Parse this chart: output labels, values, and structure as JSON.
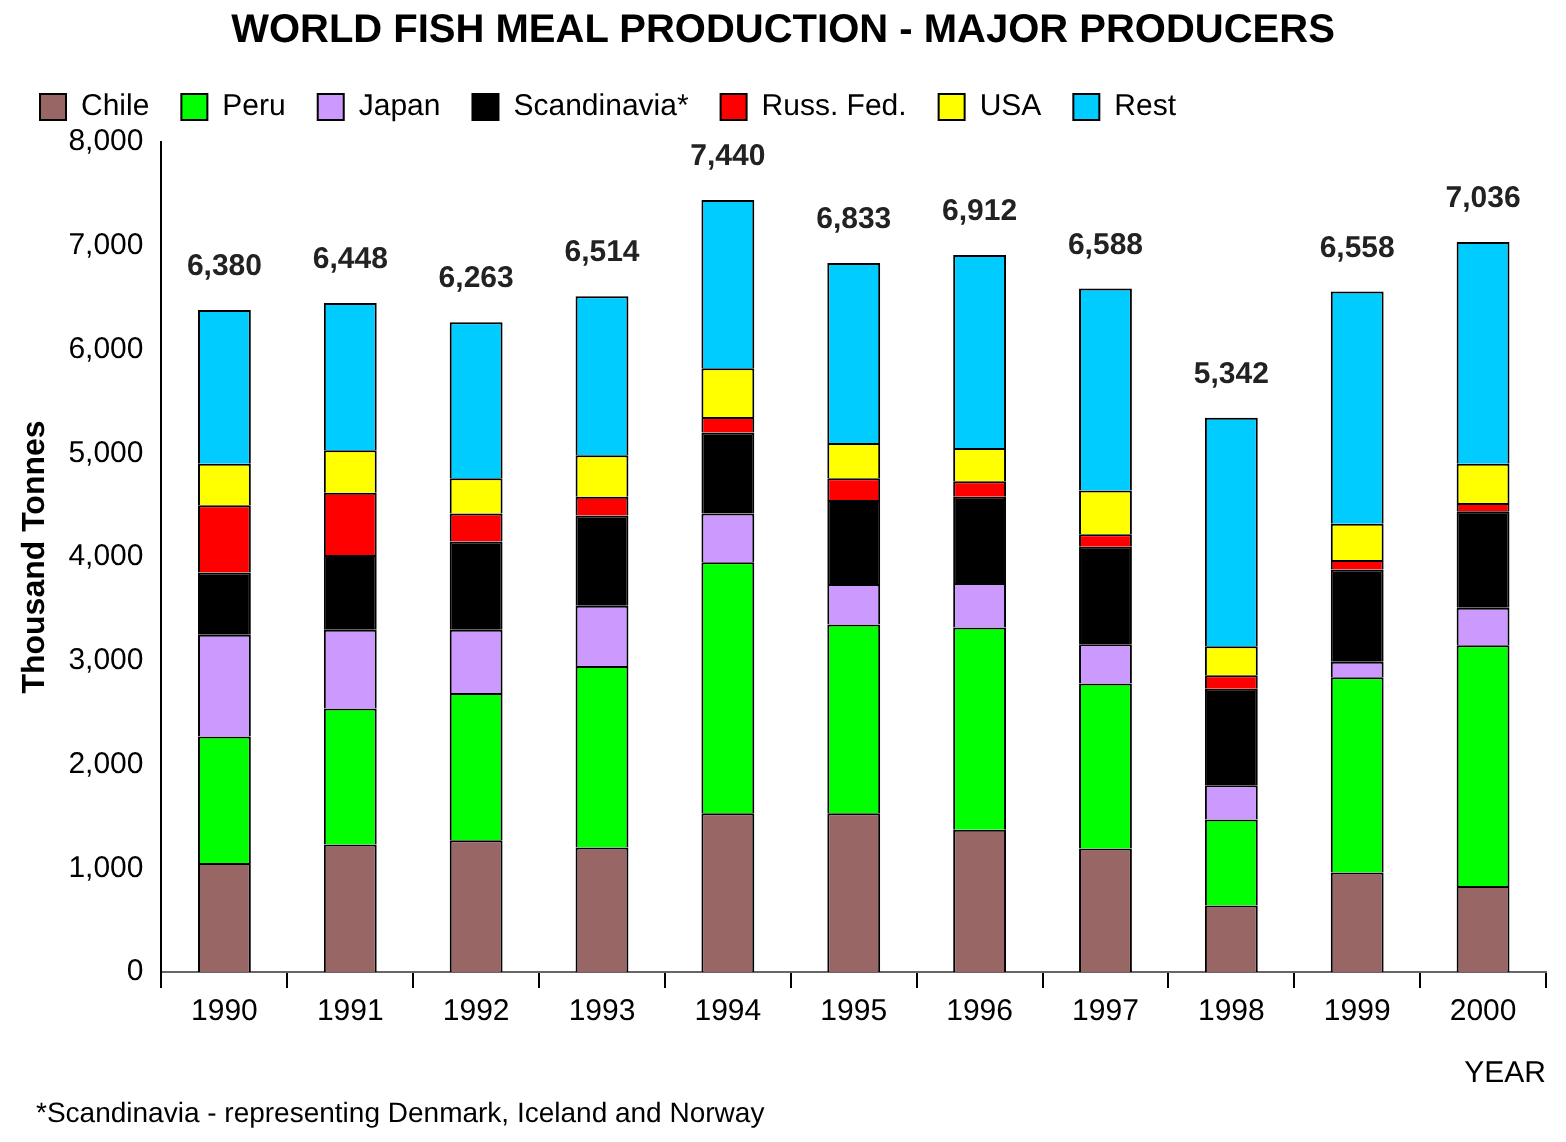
{
  "chart_data": {
    "type": "bar",
    "title": "WORLD FISH MEAL PRODUCTION - MAJOR PRODUCERS",
    "xlabel": "YEAR",
    "ylabel": "Thousand Tonnes",
    "stacked": true,
    "legend": "top",
    "grid": false,
    "categories": [
      "1990",
      "1991",
      "1992",
      "1993",
      "1994",
      "1995",
      "1996",
      "1997",
      "1998",
      "1999",
      "2000"
    ],
    "series": [
      {
        "name": "Chile",
        "color": "#996666",
        "values": [
          1050,
          1230,
          1270,
          1200,
          1530,
          1530,
          1370,
          1190,
          640,
          960,
          830
        ]
      },
      {
        "name": "Peru",
        "color": "#00ff00",
        "values": [
          1220,
          1310,
          1420,
          1750,
          2420,
          1820,
          1950,
          1590,
          830,
          1880,
          2320
        ]
      },
      {
        "name": "Japan",
        "color": "#cc99ff",
        "values": [
          980,
          760,
          610,
          580,
          470,
          390,
          430,
          380,
          330,
          150,
          360
        ]
      },
      {
        "name": "Scandinavia*",
        "color": "#000000",
        "values": [
          600,
          720,
          850,
          870,
          780,
          810,
          830,
          940,
          930,
          890,
          930
        ]
      },
      {
        "name": "Russ. Fed.",
        "color": "#ff0000",
        "values": [
          650,
          600,
          270,
          180,
          150,
          210,
          150,
          120,
          130,
          90,
          80
        ]
      },
      {
        "name": "USA",
        "color": "#ffff00",
        "values": [
          400,
          410,
          340,
          400,
          470,
          340,
          320,
          420,
          280,
          350,
          380
        ]
      },
      {
        "name": "Rest",
        "color": "#00ccff",
        "values": [
          1480,
          1418,
          1503,
          1534,
          1620,
          1733,
          1862,
          1948,
          2202,
          2238,
          2136
        ]
      }
    ],
    "totals": [
      "6,380",
      "6,448",
      "6,263",
      "6,514",
      "7,440",
      "6,833",
      "6,912",
      "6,588",
      "5,342",
      "6,558",
      "7,036"
    ],
    "ylim": [
      0,
      8000
    ],
    "yticks": [
      {
        "value": 0,
        "label": "0"
      },
      {
        "value": 1000,
        "label": "1,000"
      },
      {
        "value": 2000,
        "label": "2,000"
      },
      {
        "value": 3000,
        "label": "3,000"
      },
      {
        "value": 4000,
        "label": "4,000"
      },
      {
        "value": 5000,
        "label": "5,000"
      },
      {
        "value": 6000,
        "label": "6,000"
      },
      {
        "value": 7000,
        "label": "7,000"
      },
      {
        "value": 8000,
        "label": "8,000"
      }
    ],
    "annotations": [
      "*Scandinavia - representing Denmark, Iceland and Norway"
    ]
  }
}
